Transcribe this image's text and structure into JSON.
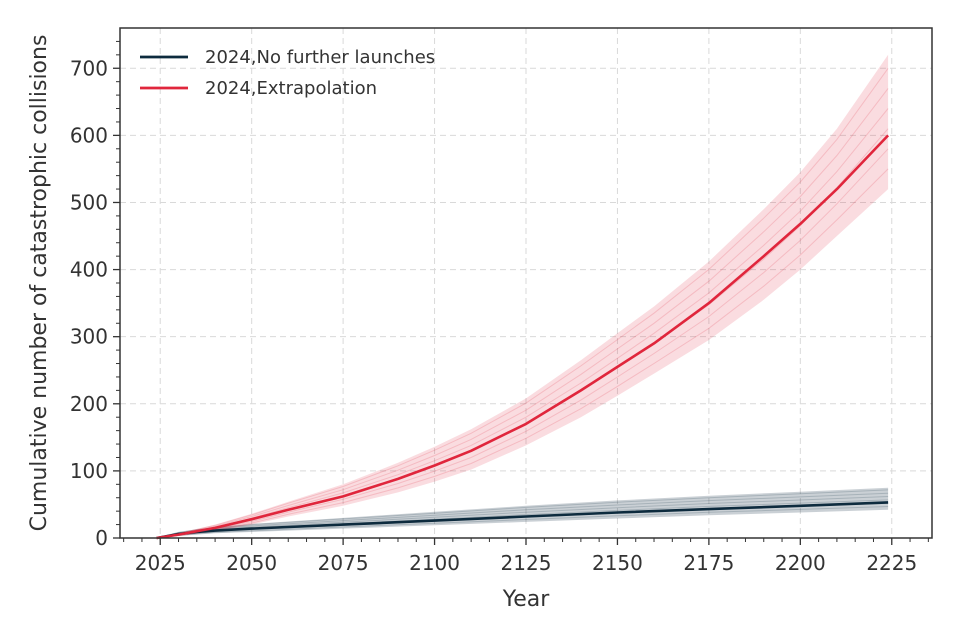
{
  "chart_data": {
    "type": "line",
    "xlabel": "Year",
    "ylabel": "Cumulative number of catastrophic collisions",
    "xlim": [
      2014,
      2236
    ],
    "ylim": [
      0,
      760
    ],
    "x_ticks": [
      2025,
      2050,
      2075,
      2100,
      2125,
      2150,
      2175,
      2200,
      2225
    ],
    "y_ticks": [
      0,
      100,
      200,
      300,
      400,
      500,
      600,
      700
    ],
    "grid": true,
    "legend_position": "top-left",
    "series": [
      {
        "name": "2024,No further launches",
        "color": "#0d2b3e",
        "x": [
          2024,
          2030,
          2035,
          2040,
          2050,
          2075,
          2100,
          2125,
          2150,
          2175,
          2200,
          2224
        ],
        "y": [
          0,
          6,
          9,
          11,
          14,
          20,
          26,
          32,
          38,
          43,
          48,
          53
        ],
        "band_upper": [
          0,
          9,
          13,
          16,
          21,
          30,
          39,
          48,
          56,
          63,
          69,
          75
        ],
        "band_lower": [
          0,
          3,
          5,
          7,
          9,
          14,
          19,
          24,
          29,
          34,
          38,
          42
        ]
      },
      {
        "name": "2024,Extrapolation",
        "color": "#e0263c",
        "x": [
          2024,
          2030,
          2040,
          2050,
          2060,
          2075,
          2090,
          2100,
          2110,
          2125,
          2140,
          2150,
          2160,
          2175,
          2190,
          2200,
          2210,
          2224
        ],
        "y": [
          0,
          5,
          15,
          28,
          42,
          62,
          88,
          108,
          130,
          170,
          220,
          255,
          290,
          350,
          420,
          468,
          520,
          600
        ],
        "band_upper": [
          0,
          7,
          20,
          36,
          54,
          80,
          112,
          136,
          162,
          208,
          265,
          305,
          345,
          412,
          490,
          545,
          610,
          720
        ],
        "band_lower": [
          0,
          3,
          10,
          20,
          32,
          48,
          68,
          84,
          102,
          138,
          180,
          212,
          245,
          295,
          355,
          400,
          450,
          520
        ]
      }
    ]
  }
}
